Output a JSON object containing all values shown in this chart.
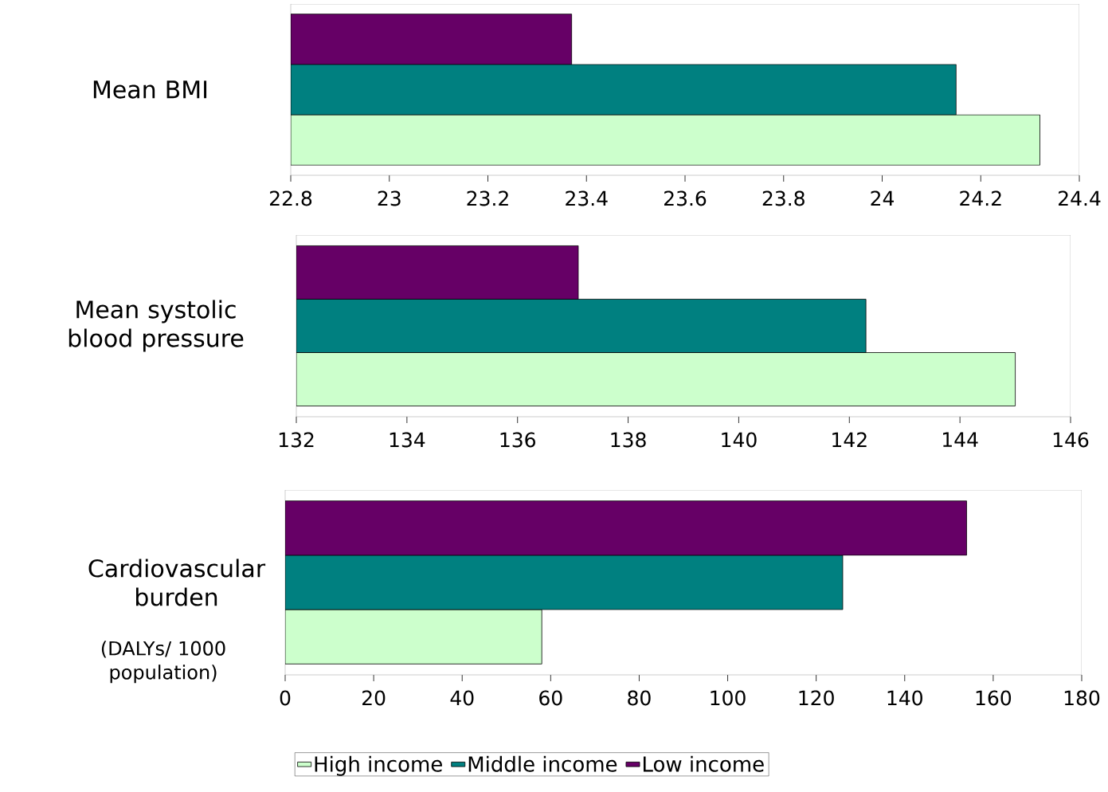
{
  "chart_data": [
    {
      "type": "bar",
      "orientation": "horizontal",
      "categories": [
        "Mean BMI"
      ],
      "series": [
        {
          "color": "#ccffcc",
          "values": [
            24.32
          ]
        },
        {
          "color": "#008080",
          "values": [
            24.15
          ]
        },
        {
          "color": "#660066",
          "values": [
            23.37
          ]
        }
      ],
      "xlim": [
        22.8,
        24.4
      ],
      "xticks": [
        22.8,
        23,
        23.2,
        23.4,
        23.6,
        23.8,
        24,
        24.2,
        24.4
      ]
    },
    {
      "type": "bar",
      "orientation": "horizontal",
      "categories": [
        "Mean systolic blood pressure"
      ],
      "series": [
        {
          "color": "#ccffcc",
          "values": [
            145.0
          ]
        },
        {
          "color": "#008080",
          "values": [
            142.3
          ]
        },
        {
          "color": "#660066",
          "values": [
            137.1
          ]
        }
      ],
      "xlim": [
        132,
        146
      ],
      "xticks": [
        132,
        134,
        136,
        138,
        140,
        142,
        144,
        146
      ]
    },
    {
      "type": "bar",
      "orientation": "horizontal",
      "categories": [
        "Cardiovascular burden"
      ],
      "ylabel": "(DALYs/ 1000 population)",
      "series": [
        {
          "name": "High income",
          "color": "#ccffcc",
          "values": [
            58
          ]
        },
        {
          "name": "Middle income",
          "color": "#008080",
          "values": [
            126
          ]
        },
        {
          "name": "Low income",
          "color": "#660066",
          "values": [
            154
          ]
        }
      ],
      "xlim": [
        0,
        180
      ],
      "xticks": [
        0,
        20,
        40,
        60,
        80,
        100,
        120,
        140,
        160,
        180
      ],
      "legend": "bottom"
    }
  ]
}
